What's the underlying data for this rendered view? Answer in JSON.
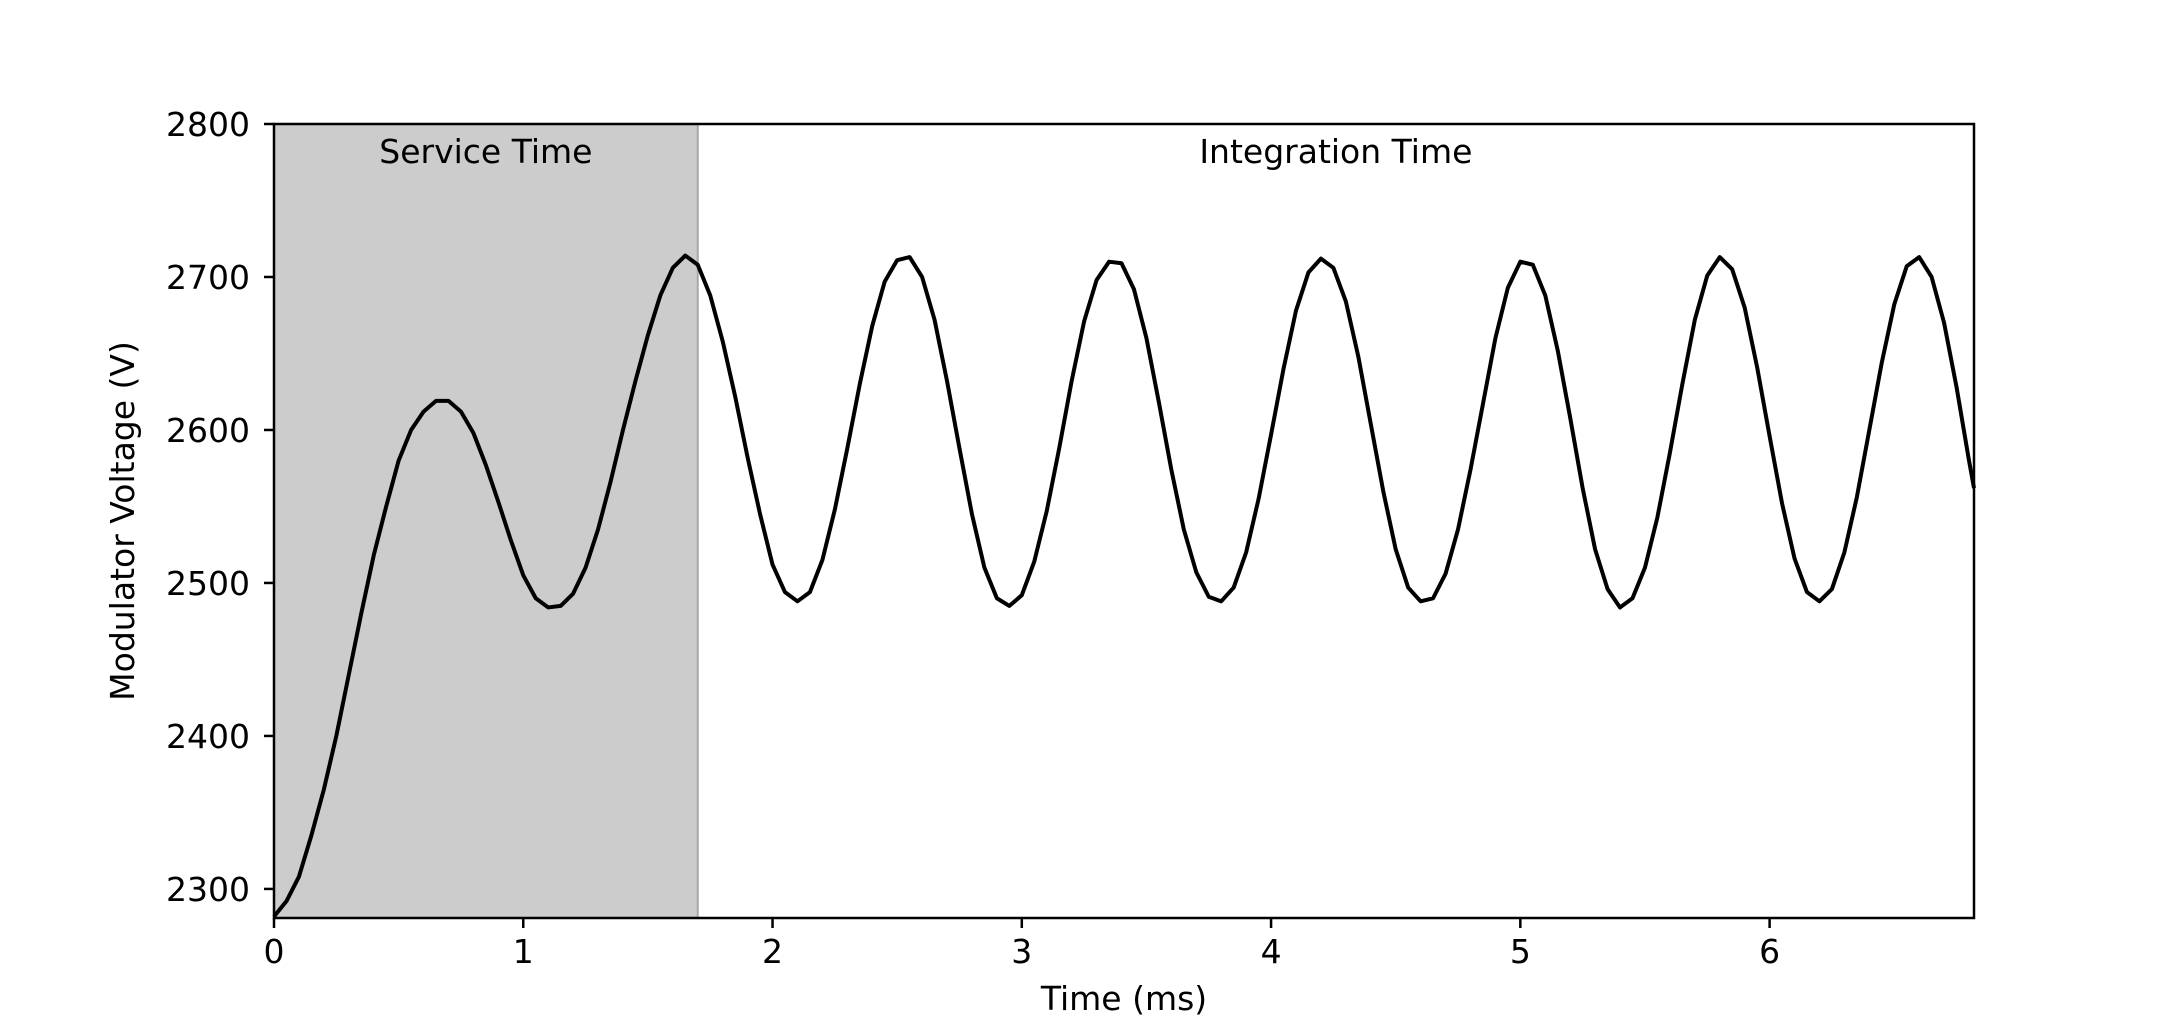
{
  "chart_data": {
    "type": "line",
    "title": "",
    "xlabel": "Time (ms)",
    "ylabel": "Modulator Voltage (V)",
    "xlim": [
      0,
      6.82
    ],
    "ylim": [
      2281,
      2800
    ],
    "x_ticks": [
      "0",
      "1",
      "2",
      "3",
      "4",
      "5",
      "6"
    ],
    "y_ticks": [
      "2300",
      "2400",
      "2500",
      "2600",
      "2700",
      "2800"
    ],
    "grid": false,
    "legend": "none",
    "regions": [
      {
        "label": "Service Time",
        "x_start": 0,
        "x_end": 1.7,
        "shaded": true,
        "color": "#cccccc"
      },
      {
        "label": "Integration Time",
        "x_start": 1.7,
        "x_end": 6.82,
        "shaded": false
      }
    ],
    "series": [
      {
        "color": "#000000",
        "points": [
          [
            0.0,
            2282
          ],
          [
            0.05,
            2292
          ],
          [
            0.1,
            2308
          ],
          [
            0.15,
            2335
          ],
          [
            0.2,
            2365
          ],
          [
            0.25,
            2400
          ],
          [
            0.3,
            2440
          ],
          [
            0.35,
            2480
          ],
          [
            0.4,
            2518
          ],
          [
            0.45,
            2550
          ],
          [
            0.5,
            2580
          ],
          [
            0.55,
            2600
          ],
          [
            0.6,
            2612
          ],
          [
            0.65,
            2619
          ],
          [
            0.7,
            2619
          ],
          [
            0.75,
            2612
          ],
          [
            0.8,
            2598
          ],
          [
            0.85,
            2577
          ],
          [
            0.9,
            2553
          ],
          [
            0.95,
            2528
          ],
          [
            1.0,
            2505
          ],
          [
            1.05,
            2490
          ],
          [
            1.1,
            2484
          ],
          [
            1.15,
            2485
          ],
          [
            1.2,
            2493
          ],
          [
            1.25,
            2510
          ],
          [
            1.3,
            2535
          ],
          [
            1.35,
            2566
          ],
          [
            1.4,
            2600
          ],
          [
            1.45,
            2632
          ],
          [
            1.5,
            2662
          ],
          [
            1.55,
            2688
          ],
          [
            1.6,
            2706
          ],
          [
            1.65,
            2714
          ],
          [
            1.7,
            2708
          ],
          [
            1.75,
            2688
          ],
          [
            1.8,
            2658
          ],
          [
            1.85,
            2622
          ],
          [
            1.9,
            2582
          ],
          [
            1.95,
            2545
          ],
          [
            2.0,
            2512
          ],
          [
            2.05,
            2494
          ],
          [
            2.1,
            2488
          ],
          [
            2.15,
            2494
          ],
          [
            2.2,
            2515
          ],
          [
            2.25,
            2548
          ],
          [
            2.3,
            2588
          ],
          [
            2.35,
            2630
          ],
          [
            2.4,
            2668
          ],
          [
            2.45,
            2697
          ],
          [
            2.5,
            2711
          ],
          [
            2.55,
            2713
          ],
          [
            2.6,
            2700
          ],
          [
            2.65,
            2672
          ],
          [
            2.7,
            2632
          ],
          [
            2.75,
            2588
          ],
          [
            2.8,
            2545
          ],
          [
            2.85,
            2510
          ],
          [
            2.9,
            2490
          ],
          [
            2.95,
            2485
          ],
          [
            3.0,
            2492
          ],
          [
            3.05,
            2514
          ],
          [
            3.1,
            2547
          ],
          [
            3.15,
            2588
          ],
          [
            3.2,
            2632
          ],
          [
            3.25,
            2671
          ],
          [
            3.3,
            2698
          ],
          [
            3.35,
            2710
          ],
          [
            3.4,
            2709
          ],
          [
            3.45,
            2692
          ],
          [
            3.5,
            2660
          ],
          [
            3.55,
            2618
          ],
          [
            3.6,
            2574
          ],
          [
            3.65,
            2535
          ],
          [
            3.7,
            2507
          ],
          [
            3.75,
            2491
          ],
          [
            3.8,
            2488
          ],
          [
            3.85,
            2497
          ],
          [
            3.9,
            2520
          ],
          [
            3.95,
            2555
          ],
          [
            4.0,
            2597
          ],
          [
            4.05,
            2640
          ],
          [
            4.1,
            2678
          ],
          [
            4.15,
            2703
          ],
          [
            4.2,
            2712
          ],
          [
            4.25,
            2706
          ],
          [
            4.3,
            2684
          ],
          [
            4.35,
            2648
          ],
          [
            4.4,
            2604
          ],
          [
            4.45,
            2560
          ],
          [
            4.5,
            2522
          ],
          [
            4.55,
            2497
          ],
          [
            4.6,
            2488
          ],
          [
            4.65,
            2490
          ],
          [
            4.7,
            2506
          ],
          [
            4.75,
            2535
          ],
          [
            4.8,
            2574
          ],
          [
            4.85,
            2617
          ],
          [
            4.9,
            2660
          ],
          [
            4.95,
            2693
          ],
          [
            5.0,
            2710
          ],
          [
            5.05,
            2708
          ],
          [
            5.1,
            2688
          ],
          [
            5.15,
            2652
          ],
          [
            5.2,
            2608
          ],
          [
            5.25,
            2562
          ],
          [
            5.3,
            2522
          ],
          [
            5.35,
            2496
          ],
          [
            5.4,
            2484
          ],
          [
            5.45,
            2490
          ],
          [
            5.5,
            2510
          ],
          [
            5.55,
            2543
          ],
          [
            5.6,
            2585
          ],
          [
            5.65,
            2630
          ],
          [
            5.7,
            2672
          ],
          [
            5.75,
            2701
          ],
          [
            5.8,
            2713
          ],
          [
            5.85,
            2705
          ],
          [
            5.9,
            2680
          ],
          [
            5.95,
            2641
          ],
          [
            6.0,
            2596
          ],
          [
            6.05,
            2552
          ],
          [
            6.1,
            2516
          ],
          [
            6.15,
            2494
          ],
          [
            6.2,
            2488
          ],
          [
            6.25,
            2496
          ],
          [
            6.3,
            2520
          ],
          [
            6.35,
            2556
          ],
          [
            6.4,
            2600
          ],
          [
            6.45,
            2644
          ],
          [
            6.5,
            2682
          ],
          [
            6.55,
            2707
          ],
          [
            6.6,
            2713
          ],
          [
            6.65,
            2700
          ],
          [
            6.7,
            2670
          ],
          [
            6.75,
            2628
          ],
          [
            6.8,
            2580
          ],
          [
            6.82,
            2562
          ]
        ]
      }
    ]
  }
}
